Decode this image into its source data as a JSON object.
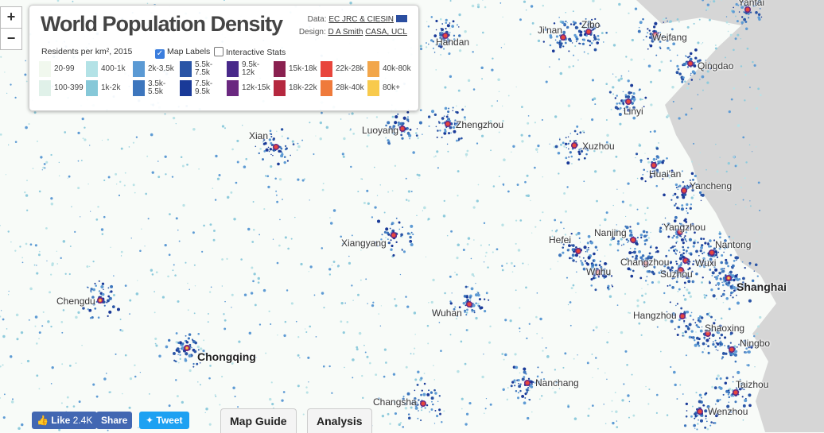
{
  "zoom": {
    "in": "+",
    "out": "−"
  },
  "panel": {
    "title": "World Population Density",
    "credits": {
      "data_label": "Data:",
      "data_link": "EC JRC & CIESIN",
      "design_label": "Design:",
      "designer": "D A Smith",
      "affiliation": "CASA, UCL"
    },
    "legend": {
      "title": "Residents per km², 2015",
      "items": [
        {
          "label": "20-99",
          "color": "#f1f8ee"
        },
        {
          "label": "100-399",
          "color": "#e0f1e9"
        },
        {
          "label": "400-1k",
          "color": "#b3e2e6"
        },
        {
          "label": "1k-2k",
          "color": "#86c8d8"
        },
        {
          "label": "2k-3.5k",
          "color": "#5b9ad4"
        },
        {
          "label": "3.5k-5.5k",
          "color": "#3d76bd"
        },
        {
          "label": "5.5k-7.5k",
          "color": "#2a55a6"
        },
        {
          "label": "7.5k-9.5k",
          "color": "#1a3a98"
        },
        {
          "label": "9.5k-12k",
          "color": "#48298a"
        },
        {
          "label": "12k-15k",
          "color": "#6a2880"
        },
        {
          "label": "15k-18k",
          "color": "#8a2150"
        },
        {
          "label": "18k-22k",
          "color": "#b5283f"
        },
        {
          "label": "22k-28k",
          "color": "#e8453c"
        },
        {
          "label": "28k-40k",
          "color": "#ef7a3b"
        },
        {
          "label": "40k-80k",
          "color": "#f2a64a"
        },
        {
          "label": "80k+",
          "color": "#f8ca4c"
        }
      ]
    },
    "toggles": [
      {
        "label": "Map Labels",
        "checked": true
      },
      {
        "label": "Interactive Stats",
        "checked": false
      }
    ]
  },
  "cities": [
    {
      "name": "Yantai",
      "major": false
    },
    {
      "name": "Handan",
      "major": false
    },
    {
      "name": "Ji'nan",
      "major": false
    },
    {
      "name": "Zibo",
      "major": false
    },
    {
      "name": "Weifang",
      "major": false
    },
    {
      "name": "Qingdao",
      "major": false
    },
    {
      "name": "Xian",
      "major": false
    },
    {
      "name": "Luoyang",
      "major": false
    },
    {
      "name": "Zhengzhou",
      "major": false
    },
    {
      "name": "Linyi",
      "major": false
    },
    {
      "name": "Xuzhou",
      "major": false
    },
    {
      "name": "Huai'an",
      "major": false
    },
    {
      "name": "Yancheng",
      "major": false
    },
    {
      "name": "Xiangyang",
      "major": false
    },
    {
      "name": "Nanjing",
      "major": false
    },
    {
      "name": "Yangzhou",
      "major": false
    },
    {
      "name": "Nantong",
      "major": false
    },
    {
      "name": "Hefei",
      "major": false
    },
    {
      "name": "Changzhou",
      "major": false
    },
    {
      "name": "Wuxi",
      "major": false
    },
    {
      "name": "Wuhu",
      "major": false
    },
    {
      "name": "Suzhou",
      "major": false
    },
    {
      "name": "Shanghai",
      "major": true
    },
    {
      "name": "Chengdu",
      "major": false
    },
    {
      "name": "Chongqing",
      "major": true
    },
    {
      "name": "Wuhan",
      "major": false
    },
    {
      "name": "Hangzhou",
      "major": false
    },
    {
      "name": "Shaoxing",
      "major": false
    },
    {
      "name": "Ningbo",
      "major": false
    },
    {
      "name": "Nanchang",
      "major": false
    },
    {
      "name": "Taizhou",
      "major": false
    },
    {
      "name": "Changsha",
      "major": false
    },
    {
      "name": "Wenzhou",
      "major": false
    }
  ],
  "footer": {
    "like": "Like",
    "like_count": "2.4K",
    "share": "Share",
    "tweet": "Tweet",
    "buttons": [
      "Map Guide",
      "Analysis"
    ]
  }
}
